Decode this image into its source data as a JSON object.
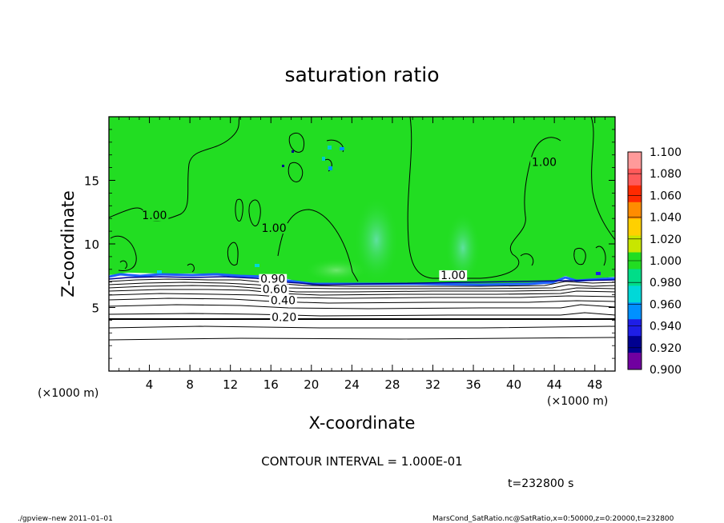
{
  "chart_data": {
    "type": "contour",
    "title": "saturation ratio",
    "xlabel": "X-coordinate",
    "ylabel": "Z-coordinate",
    "x_unit": "(×1000 m)",
    "x_unit_right": "(×1000 m)",
    "xlim": [
      0,
      50
    ],
    "ylim": [
      0,
      20
    ],
    "x_ticks": [
      4,
      8,
      12,
      16,
      20,
      24,
      28,
      32,
      36,
      40,
      44,
      48
    ],
    "y_ticks": [
      5,
      10,
      15
    ],
    "colorbar": {
      "levels": [
        "1.100",
        "1.080",
        "1.060",
        "1.040",
        "1.020",
        "1.000",
        "0.980",
        "0.960",
        "0.940",
        "0.920",
        "0.900"
      ],
      "colors": [
        "#ff9a9a",
        "#ff5a5a",
        "#ff2a00",
        "#ff8c00",
        "#ffd000",
        "#c8e600",
        "#22dd22",
        "#00dd88",
        "#00d8d8",
        "#0090ff",
        "#1e1ee6",
        "#000090",
        "#7000a0"
      ]
    },
    "contour_labels": [
      {
        "text": "1.00",
        "x": 4.5,
        "z": 12.0
      },
      {
        "text": "1.00",
        "x": 16.3,
        "z": 11.0
      },
      {
        "text": "1.00",
        "x": 43.0,
        "z": 16.2
      },
      {
        "text": "1.00",
        "x": 34.0,
        "z": 7.3
      },
      {
        "text": "0.90",
        "x": 16.2,
        "z": 7.0
      },
      {
        "text": "0.60",
        "x": 16.4,
        "z": 6.2
      },
      {
        "text": "0.40",
        "x": 17.2,
        "z": 5.3
      },
      {
        "text": "0.20",
        "x": 17.3,
        "z": 4.0
      }
    ],
    "contour_interval_text": "CONTOUR INTERVAL = 1.000E-01",
    "time_text": "t=232800 s"
  },
  "footer": {
    "left": "./gpview–new   2011–01–01",
    "right": "MarsCond_SatRatio.nc@SatRatio,x=0:50000,z=0:20000,t=232800"
  }
}
